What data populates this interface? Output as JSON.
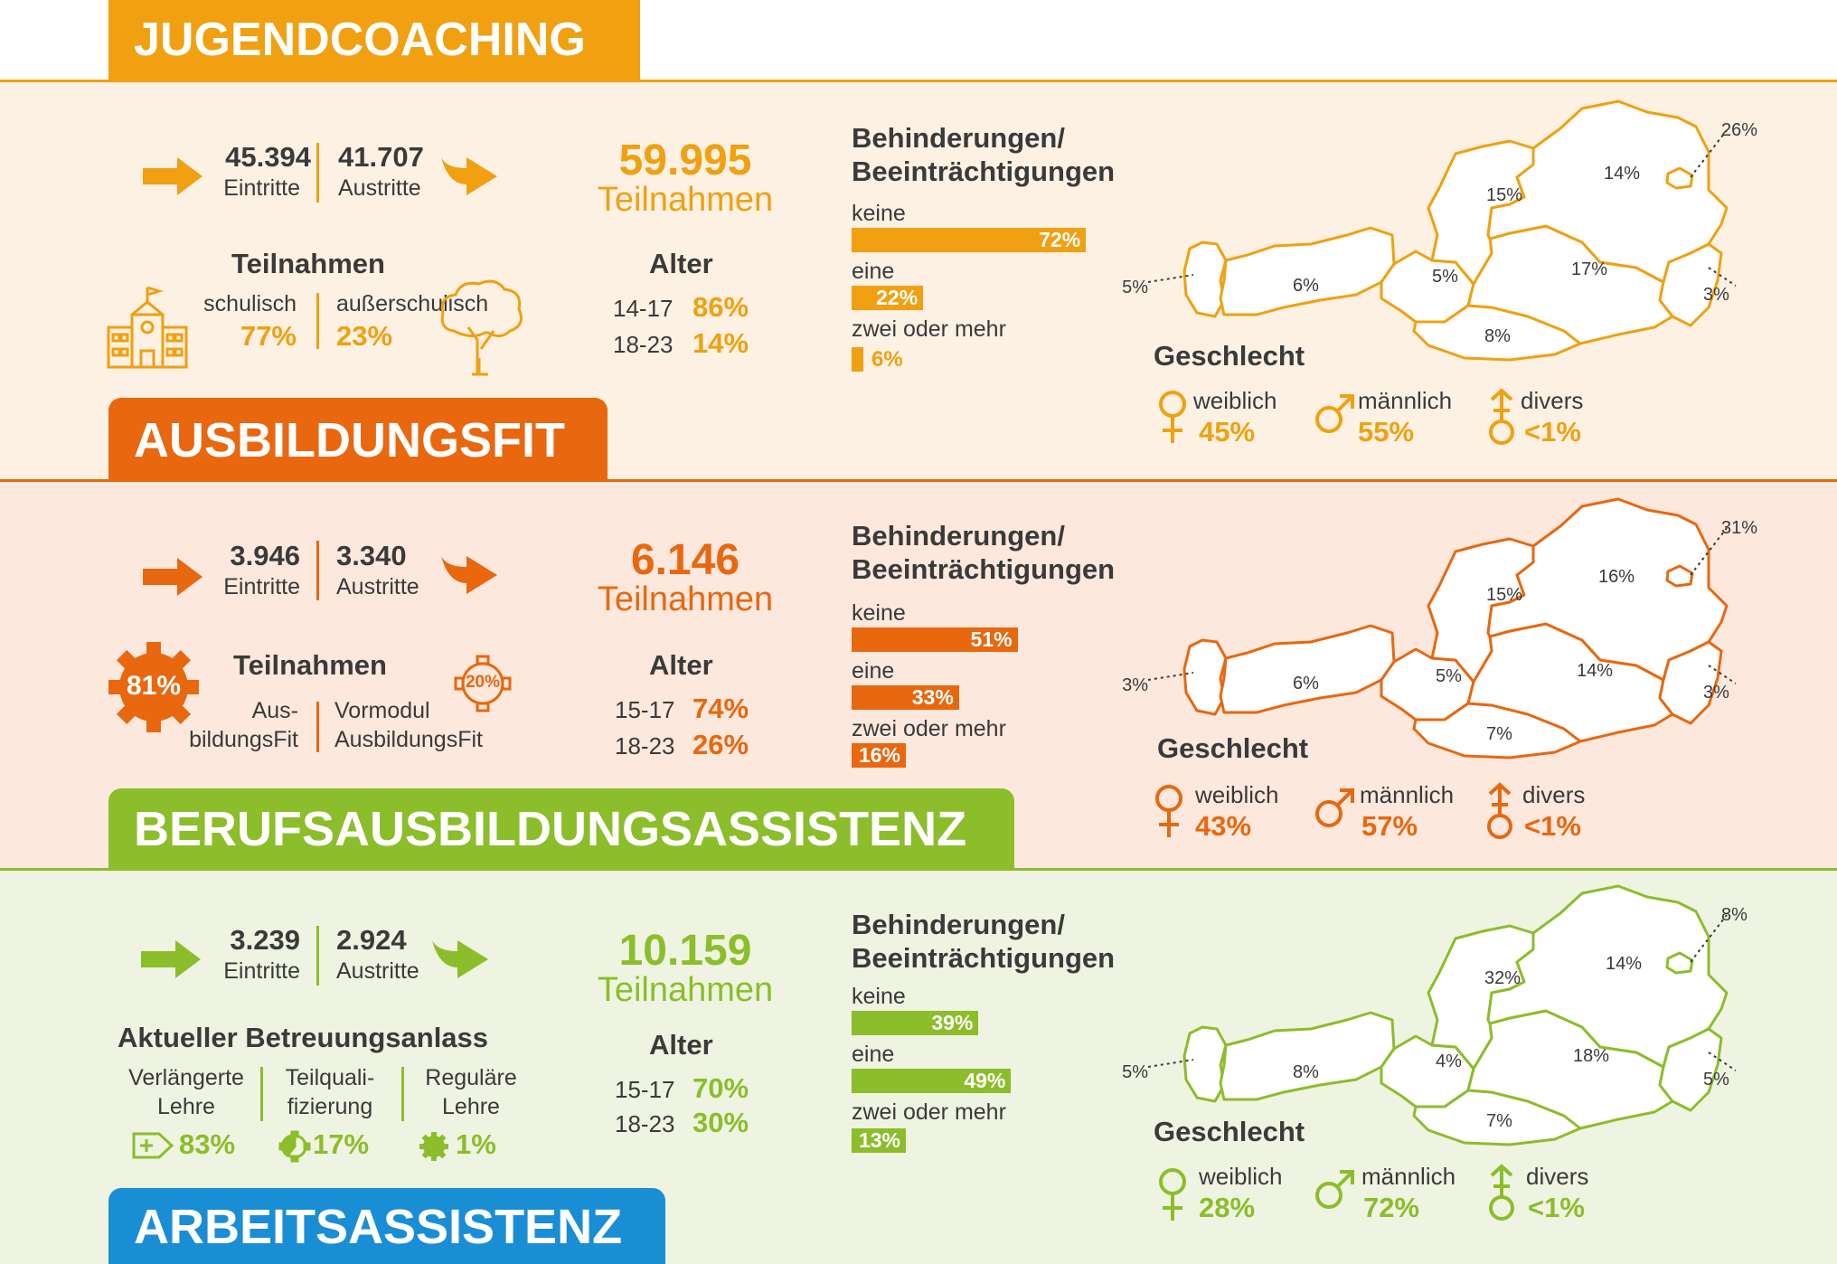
{
  "jugendcoaching": {
    "title": "JUGENDCOACHING",
    "eintritte": "45.394",
    "eintritte_label": "Eintritte",
    "austritte": "41.707",
    "austritte_label": "Austritte",
    "total": "59.995",
    "total_label": "Teilnahmen",
    "teilnahmen_heading": "Teilnahmen",
    "split_left_label": "schulisch",
    "split_left_pct": "77%",
    "split_right_label": "außerschulisch",
    "split_right_pct": "23%",
    "alter_heading": "Alter",
    "age1": "14-17",
    "age1_pct": "86%",
    "age2": "18-23",
    "age2_pct": "14%",
    "behind_h1": "Behinderungen/",
    "behind_h2": "Beeinträchtigungen",
    "keine": "keine",
    "keine_pct": "72%",
    "keine_val": 72,
    "eine": "eine",
    "eine_pct": "22%",
    "eine_val": 22,
    "zwei": "zwei oder mehr",
    "zwei_pct": "6%",
    "zwei_val": 6,
    "map": {
      "w": "26%",
      "noe": "14%",
      "ooe": "15%",
      "stmk": "17%",
      "bgld": "3%",
      "sbg": "5%",
      "tirol": "6%",
      "vbg": "5%",
      "ktn": "8%"
    },
    "geschlecht": "Geschlecht",
    "weiblich": "weiblich",
    "weiblich_pct": "45%",
    "maennlich": "männlich",
    "maennlich_pct": "55%",
    "divers": "divers",
    "divers_pct": "<1%",
    "color": "#f0a010",
    "bg": "#fdf1e3"
  },
  "ausbildungsfit": {
    "title": "AUSBILDUNGSFIT",
    "eintritte": "3.946",
    "eintritte_label": "Eintritte",
    "austritte": "3.340",
    "austritte_label": "Austritte",
    "total": "6.146",
    "total_label": "Teilnahmen",
    "teilnahmen_heading": "Teilnahmen",
    "gear_left_pct": "81%",
    "gear_right_pct": "20%",
    "split_left_label_1": "Aus-",
    "split_left_label_2": "bildungsFit",
    "split_right_label_1": "Vormodul",
    "split_right_label_2": "AusbildungsFit",
    "alter_heading": "Alter",
    "age1": "15-17",
    "age1_pct": "74%",
    "age2": "18-23",
    "age2_pct": "26%",
    "behind_h1": "Behinderungen/",
    "behind_h2": "Beeinträchtigungen",
    "keine": "keine",
    "keine_pct": "51%",
    "keine_val": 51,
    "eine": "eine",
    "eine_pct": "33%",
    "eine_val": 33,
    "zwei": "zwei oder mehr",
    "zwei_pct": "16%",
    "zwei_val": 16,
    "map": {
      "w": "31%",
      "noe": "16%",
      "ooe": "15%",
      "stmk": "14%",
      "bgld": "3%",
      "sbg": "5%",
      "tirol": "6%",
      "vbg": "3%",
      "ktn": "7%"
    },
    "geschlecht": "Geschlecht",
    "weiblich": "weiblich",
    "weiblich_pct": "43%",
    "maennlich": "männlich",
    "maennlich_pct": "57%",
    "divers": "divers",
    "divers_pct": "<1%",
    "color": "#e8670f",
    "bg": "#fce8dd"
  },
  "berufsausbildungsassistenz": {
    "title": "BERUFSAUSBILDUNGSASSISTENZ",
    "eintritte": "3.239",
    "eintritte_label": "Eintritte",
    "austritte": "2.924",
    "austritte_label": "Austritte",
    "total": "10.159",
    "total_label": "Teilnahmen",
    "anlass_heading": "Aktueller Betreuungsanlass",
    "c1_l1": "Verlängerte",
    "c1_l2": "Lehre",
    "c1_pct": "83%",
    "c2_l1": "Teilquali-",
    "c2_l2": "fizierung",
    "c2_pct": "17%",
    "c3_l1": "Reguläre",
    "c3_l2": "Lehre",
    "c3_pct": "1%",
    "alter_heading": "Alter",
    "age1": "15-17",
    "age1_pct": "70%",
    "age2": "18-23",
    "age2_pct": "30%",
    "behind_h1": "Behinderungen/",
    "behind_h2": "Beeinträchtigungen",
    "keine": "keine",
    "keine_pct": "39%",
    "keine_val": 39,
    "eine": "eine",
    "eine_pct": "49%",
    "eine_val": 49,
    "zwei": "zwei oder mehr",
    "zwei_pct": "13%",
    "zwei_val": 13,
    "map": {
      "w": "8%",
      "noe": "14%",
      "ooe": "32%",
      "stmk": "18%",
      "bgld": "5%",
      "sbg": "4%",
      "tirol": "8%",
      "vbg": "5%",
      "ktn": "7%"
    },
    "geschlecht": "Geschlecht",
    "weiblich": "weiblich",
    "weiblich_pct": "28%",
    "maennlich": "männlich",
    "maennlich_pct": "72%",
    "divers": "divers",
    "divers_pct": "<1%",
    "color": "#8cbd2a",
    "bg": "#eef4e1"
  },
  "arbeitsassistenz": {
    "title": "ARBEITSASSISTENZ",
    "color": "#1a8ed4"
  }
}
